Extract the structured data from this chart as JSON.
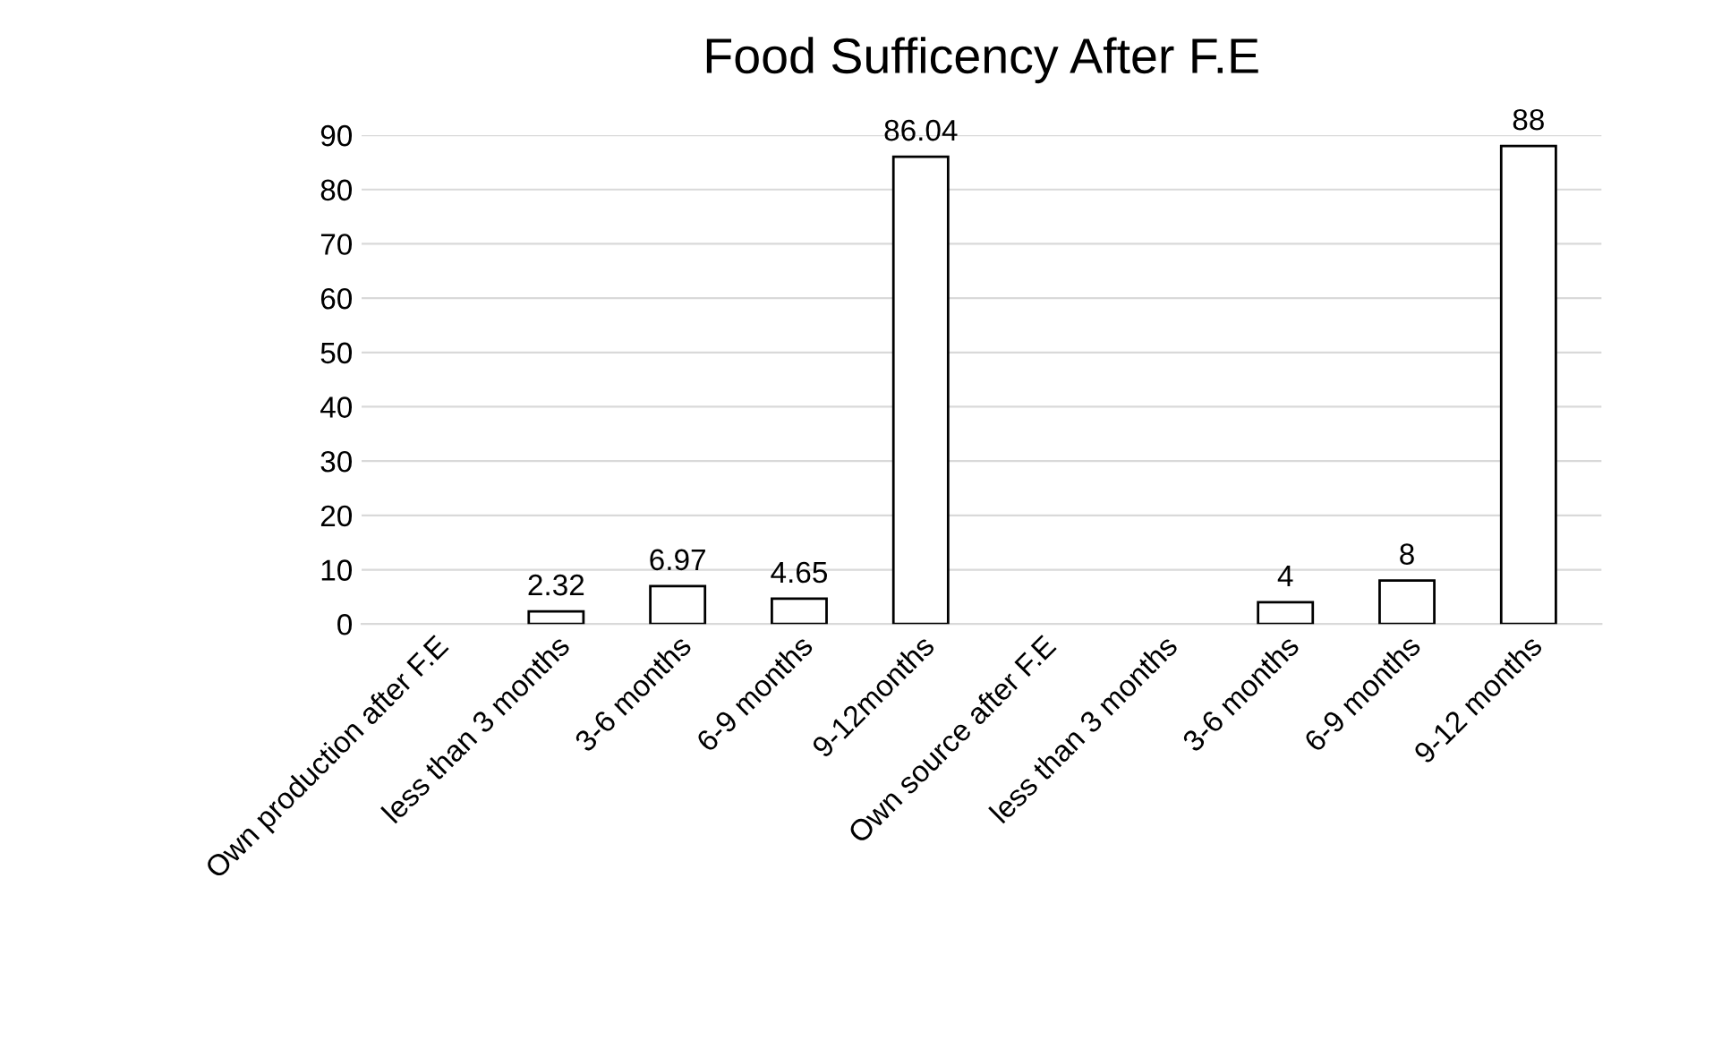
{
  "chart_data": {
    "type": "bar",
    "title": "Food Sufficency After F.E",
    "categories": [
      "Own production after F.E",
      "less than 3 months",
      "3-6 months",
      "6-9 months",
      "9-12months",
      "Own source after F.E",
      "less than 3 months",
      "3-6 months",
      "6-9 months",
      "9-12 months"
    ],
    "values": [
      null,
      2.32,
      6.97,
      4.65,
      86.04,
      null,
      null,
      4,
      8,
      88
    ],
    "color": "#ffffff",
    "ylim": [
      0,
      90
    ],
    "yticks": [
      0,
      10,
      20,
      30,
      40,
      50,
      60,
      70,
      80,
      90
    ],
    "grid": "y",
    "data_labels": true
  }
}
